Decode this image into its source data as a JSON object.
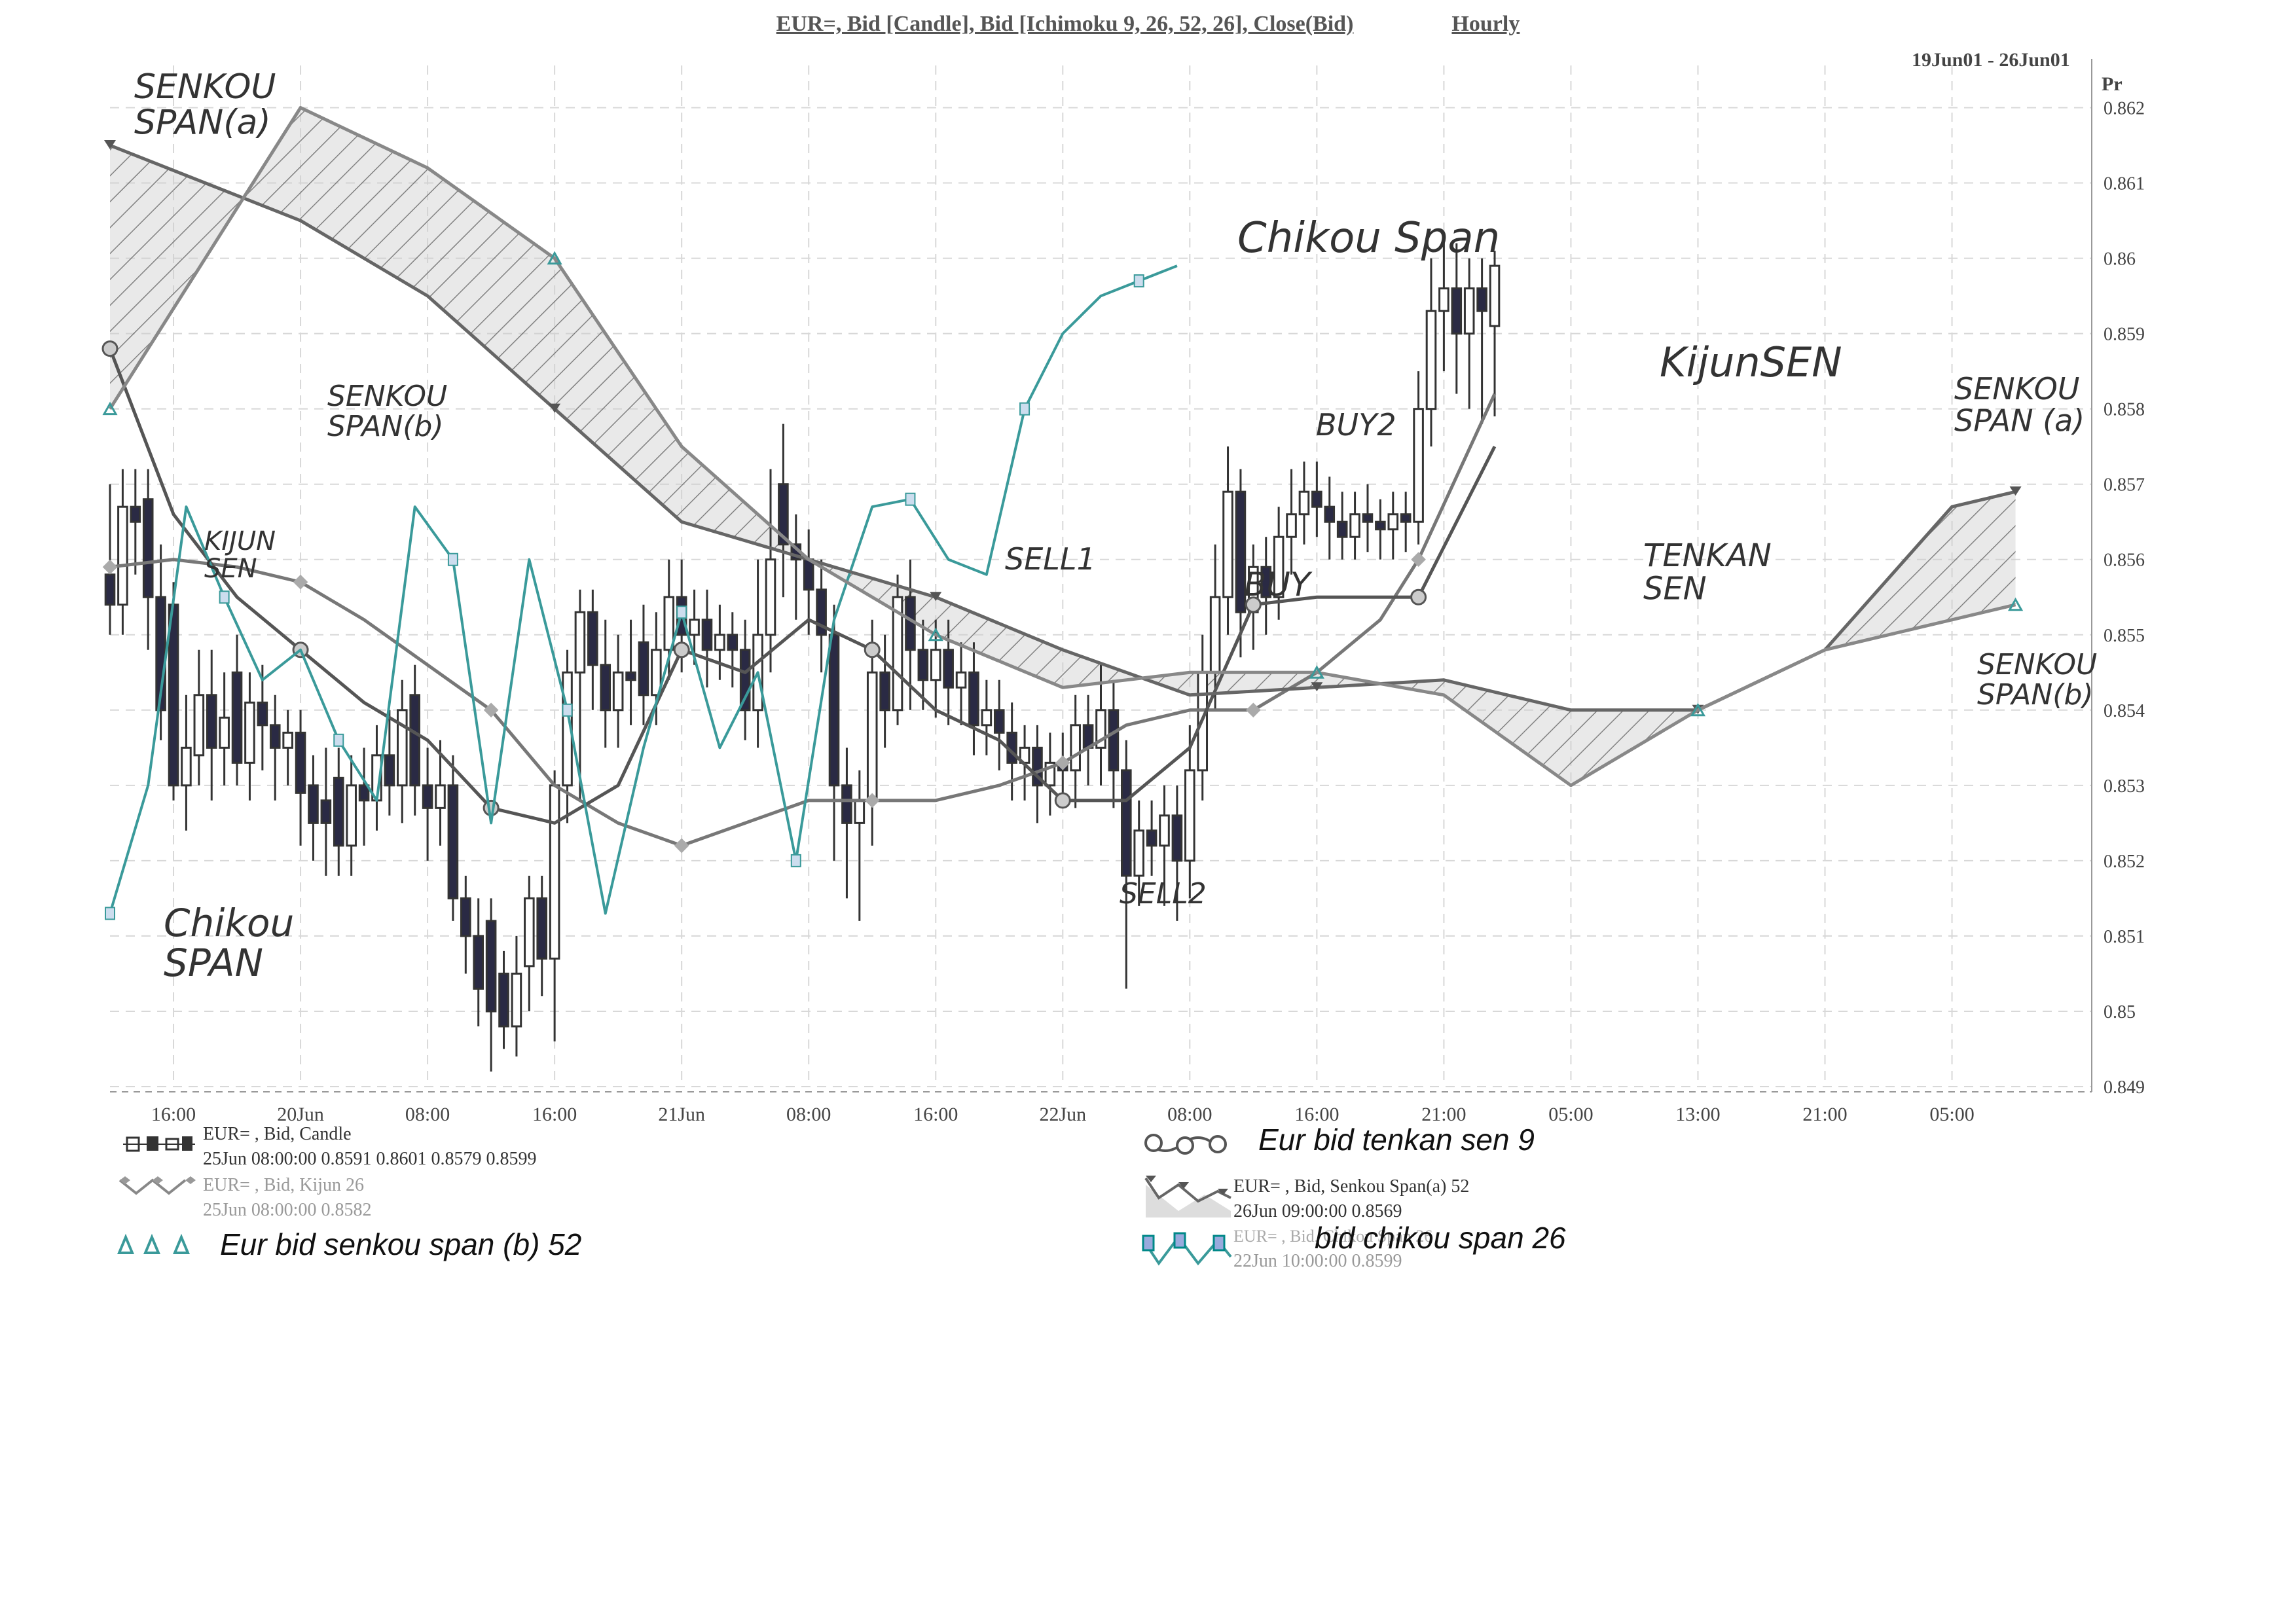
{
  "header": {
    "title": "EUR=, Bid [Candle], Bid [Ichimoku 9, 26, 52, 26], Close(Bid)",
    "timeframe": "Hourly",
    "date_range": "19Jun01 - 26Jun01"
  },
  "legend": {
    "candle_label": "EUR= , Bid, Candle",
    "candle_value": "25Jun 08:00:00 0.8591 0.8601 0.8579 0.8599",
    "kijun_label": "EUR= , Bid, Kijun 26",
    "kijun_value": "25Jun 08:00:00 0.8582",
    "senkou_b_handwritten": "Eur bid senkou span (b) 52",
    "tenkan_handwritten": "Eur bid tenkan sen 9",
    "senkou_a_label": "EUR= , Bid, Senkou Span(a) 52",
    "senkou_a_value": "26Jun 09:00:00 0.8569",
    "chikou_label": "EUR= , Bid, Chikou Span 26",
    "chikou_value": "22Jun 10:00:00 0.8599",
    "chikou_handwritten": "bid chikou span 26"
  },
  "annotations": {
    "senkou_a_left": [
      "SENKOU",
      "SPAN(a)"
    ],
    "senkou_b_left": [
      "SENKOU",
      "SPAN(b)"
    ],
    "kijun_left": [
      "KIJUN",
      "SEN"
    ],
    "chikou_left": [
      "Chikou",
      "SPAN"
    ],
    "chikou_top": "Chikou Span",
    "sell1": "SELL1",
    "sell2": "SELL2",
    "buy1": "BUY",
    "buy2": "BUY2",
    "kijun_right": "KijunSEN",
    "tenkan_right": [
      "TENKAN",
      "SEN"
    ],
    "senkou_a_right": [
      "SENKOU",
      "SPAN (a)"
    ],
    "senkou_b_right": [
      "SENKOU",
      "SPAN(b)"
    ]
  },
  "colors": {
    "candle": "#333333",
    "chikou": "#3a9a9a",
    "kijun": "#777777",
    "tenkan": "#555555",
    "senkou_a": "#666666",
    "senkou_b": "#888888",
    "cloud_fill": "#cfcfcf",
    "grid": "#d8d8d8",
    "accent": "#6a2a6a"
  },
  "chart_data": {
    "type": "candlestick",
    "title": "EUR=, Bid [Candle], Bid [Ichimoku 9, 26, 52, 26], Close(Bid)",
    "ylabel": "Pr",
    "ylim": [
      0.849,
      0.8623
    ],
    "y_ticks": [
      0.862,
      0.861,
      0.86,
      0.859,
      0.858,
      0.857,
      0.856,
      0.855,
      0.854,
      0.853,
      0.852,
      0.851,
      0.85,
      0.849
    ],
    "x_ticks": [
      "16:00",
      "20Jun",
      "08:00",
      "16:00",
      "21Jun",
      "08:00",
      "16:00",
      "22Jun",
      "08:00",
      "16:00",
      "21:00",
      "05:00",
      "13:00",
      "21:00",
      "05:00"
    ],
    "x_tick_positions": [
      0.5,
      1.5,
      2.5,
      3.5,
      4.5,
      5.5,
      6.5,
      7.5,
      8.5,
      9.5,
      10.5,
      11.5,
      12.5,
      13.5,
      14.5
    ],
    "candles": [
      {
        "x": 0.0,
        "o": 0.8558,
        "c": 0.8554,
        "h": 0.857,
        "l": 0.855
      },
      {
        "x": 0.1,
        "o": 0.8554,
        "c": 0.8567,
        "h": 0.8572,
        "l": 0.855
      },
      {
        "x": 0.2,
        "o": 0.8567,
        "c": 0.8565,
        "h": 0.8572,
        "l": 0.8558
      },
      {
        "x": 0.3,
        "o": 0.8568,
        "c": 0.8555,
        "h": 0.8572,
        "l": 0.8548
      },
      {
        "x": 0.4,
        "o": 0.8555,
        "c": 0.854,
        "h": 0.8562,
        "l": 0.8536
      },
      {
        "x": 0.5,
        "o": 0.8554,
        "c": 0.853,
        "h": 0.8557,
        "l": 0.8528
      },
      {
        "x": 0.6,
        "o": 0.853,
        "c": 0.8535,
        "h": 0.8542,
        "l": 0.8524
      },
      {
        "x": 0.7,
        "o": 0.8534,
        "c": 0.8542,
        "h": 0.8548,
        "l": 0.853
      },
      {
        "x": 0.8,
        "o": 0.8542,
        "c": 0.8535,
        "h": 0.8548,
        "l": 0.8528
      },
      {
        "x": 0.9,
        "o": 0.8535,
        "c": 0.8539,
        "h": 0.8545,
        "l": 0.853
      },
      {
        "x": 1.0,
        "o": 0.8545,
        "c": 0.8533,
        "h": 0.855,
        "l": 0.853
      },
      {
        "x": 1.1,
        "o": 0.8533,
        "c": 0.8541,
        "h": 0.8545,
        "l": 0.8528
      },
      {
        "x": 1.2,
        "o": 0.8541,
        "c": 0.8538,
        "h": 0.8546,
        "l": 0.8532
      },
      {
        "x": 1.3,
        "o": 0.8538,
        "c": 0.8535,
        "h": 0.8542,
        "l": 0.8528
      },
      {
        "x": 1.4,
        "o": 0.8535,
        "c": 0.8537,
        "h": 0.854,
        "l": 0.853
      },
      {
        "x": 1.5,
        "o": 0.8537,
        "c": 0.8529,
        "h": 0.854,
        "l": 0.8522
      },
      {
        "x": 1.6,
        "o": 0.853,
        "c": 0.8525,
        "h": 0.8534,
        "l": 0.852
      },
      {
        "x": 1.7,
        "o": 0.8528,
        "c": 0.8525,
        "h": 0.8535,
        "l": 0.8518
      },
      {
        "x": 1.8,
        "o": 0.8531,
        "c": 0.8522,
        "h": 0.8535,
        "l": 0.8518
      },
      {
        "x": 1.9,
        "o": 0.8522,
        "c": 0.853,
        "h": 0.8534,
        "l": 0.8518
      },
      {
        "x": 2.0,
        "o": 0.853,
        "c": 0.8528,
        "h": 0.8535,
        "l": 0.8522
      },
      {
        "x": 2.1,
        "o": 0.8528,
        "c": 0.8534,
        "h": 0.8538,
        "l": 0.8524
      },
      {
        "x": 2.2,
        "o": 0.8534,
        "c": 0.853,
        "h": 0.854,
        "l": 0.8526
      },
      {
        "x": 2.3,
        "o": 0.853,
        "c": 0.854,
        "h": 0.8544,
        "l": 0.8525
      },
      {
        "x": 2.4,
        "o": 0.8542,
        "c": 0.853,
        "h": 0.8546,
        "l": 0.8526
      },
      {
        "x": 2.5,
        "o": 0.853,
        "c": 0.8527,
        "h": 0.8535,
        "l": 0.852
      },
      {
        "x": 2.6,
        "o": 0.8527,
        "c": 0.853,
        "h": 0.8536,
        "l": 0.8522
      },
      {
        "x": 2.7,
        "o": 0.853,
        "c": 0.8515,
        "h": 0.8534,
        "l": 0.8512
      },
      {
        "x": 2.8,
        "o": 0.8515,
        "c": 0.851,
        "h": 0.8518,
        "l": 0.8505
      },
      {
        "x": 2.9,
        "o": 0.851,
        "c": 0.8503,
        "h": 0.8515,
        "l": 0.8498
      },
      {
        "x": 3.0,
        "o": 0.8512,
        "c": 0.85,
        "h": 0.8515,
        "l": 0.8492
      },
      {
        "x": 3.1,
        "o": 0.8505,
        "c": 0.8498,
        "h": 0.8508,
        "l": 0.8495
      },
      {
        "x": 3.2,
        "o": 0.8498,
        "c": 0.8505,
        "h": 0.851,
        "l": 0.8494
      },
      {
        "x": 3.3,
        "o": 0.8506,
        "c": 0.8515,
        "h": 0.8518,
        "l": 0.85
      },
      {
        "x": 3.4,
        "o": 0.8515,
        "c": 0.8507,
        "h": 0.8518,
        "l": 0.8502
      },
      {
        "x": 3.5,
        "o": 0.8507,
        "c": 0.853,
        "h": 0.8532,
        "l": 0.8496
      },
      {
        "x": 3.6,
        "o": 0.853,
        "c": 0.8545,
        "h": 0.8548,
        "l": 0.8525
      },
      {
        "x": 3.7,
        "o": 0.8545,
        "c": 0.8553,
        "h": 0.8556,
        "l": 0.8528
      },
      {
        "x": 3.8,
        "o": 0.8553,
        "c": 0.8546,
        "h": 0.8556,
        "l": 0.854
      },
      {
        "x": 3.9,
        "o": 0.8546,
        "c": 0.854,
        "h": 0.8552,
        "l": 0.8535
      },
      {
        "x": 4.0,
        "o": 0.854,
        "c": 0.8545,
        "h": 0.855,
        "l": 0.8535
      },
      {
        "x": 4.1,
        "o": 0.8545,
        "c": 0.8544,
        "h": 0.8552,
        "l": 0.8538
      },
      {
        "x": 4.2,
        "o": 0.8549,
        "c": 0.8542,
        "h": 0.8554,
        "l": 0.8538
      },
      {
        "x": 4.3,
        "o": 0.8542,
        "c": 0.8548,
        "h": 0.8553,
        "l": 0.8538
      },
      {
        "x": 4.4,
        "o": 0.8548,
        "c": 0.8555,
        "h": 0.856,
        "l": 0.8544
      },
      {
        "x": 4.5,
        "o": 0.8555,
        "c": 0.855,
        "h": 0.856,
        "l": 0.8545
      },
      {
        "x": 4.6,
        "o": 0.855,
        "c": 0.8552,
        "h": 0.8556,
        "l": 0.8546
      },
      {
        "x": 4.7,
        "o": 0.8552,
        "c": 0.8548,
        "h": 0.8556,
        "l": 0.8543
      },
      {
        "x": 4.8,
        "o": 0.8548,
        "c": 0.855,
        "h": 0.8554,
        "l": 0.8544
      },
      {
        "x": 4.9,
        "o": 0.855,
        "c": 0.8548,
        "h": 0.8553,
        "l": 0.8543
      },
      {
        "x": 5.0,
        "o": 0.8548,
        "c": 0.854,
        "h": 0.8552,
        "l": 0.8536
      },
      {
        "x": 5.1,
        "o": 0.854,
        "c": 0.855,
        "h": 0.856,
        "l": 0.8535
      },
      {
        "x": 5.2,
        "o": 0.855,
        "c": 0.856,
        "h": 0.8572,
        "l": 0.8545
      },
      {
        "x": 5.3,
        "o": 0.857,
        "c": 0.8562,
        "h": 0.8578,
        "l": 0.8555
      },
      {
        "x": 5.4,
        "o": 0.8562,
        "c": 0.856,
        "h": 0.8566,
        "l": 0.8552
      },
      {
        "x": 5.5,
        "o": 0.856,
        "c": 0.8556,
        "h": 0.8564,
        "l": 0.855
      },
      {
        "x": 5.6,
        "o": 0.8556,
        "c": 0.855,
        "h": 0.856,
        "l": 0.8545
      },
      {
        "x": 5.7,
        "o": 0.855,
        "c": 0.853,
        "h": 0.8554,
        "l": 0.852
      },
      {
        "x": 5.8,
        "o": 0.853,
        "c": 0.8525,
        "h": 0.8535,
        "l": 0.8515
      },
      {
        "x": 5.9,
        "o": 0.8525,
        "c": 0.8528,
        "h": 0.8532,
        "l": 0.8512
      },
      {
        "x": 6.0,
        "o": 0.8528,
        "c": 0.8545,
        "h": 0.8552,
        "l": 0.8522
      },
      {
        "x": 6.1,
        "o": 0.8545,
        "c": 0.854,
        "h": 0.855,
        "l": 0.8535
      },
      {
        "x": 6.2,
        "o": 0.854,
        "c": 0.8555,
        "h": 0.8558,
        "l": 0.8538
      },
      {
        "x": 6.3,
        "o": 0.8555,
        "c": 0.8548,
        "h": 0.856,
        "l": 0.854
      },
      {
        "x": 6.4,
        "o": 0.8548,
        "c": 0.8544,
        "h": 0.8552,
        "l": 0.854
      },
      {
        "x": 6.5,
        "o": 0.8544,
        "c": 0.8548,
        "h": 0.8552,
        "l": 0.8539
      },
      {
        "x": 6.6,
        "o": 0.8548,
        "c": 0.8543,
        "h": 0.8552,
        "l": 0.8538
      },
      {
        "x": 6.7,
        "o": 0.8543,
        "c": 0.8545,
        "h": 0.8549,
        "l": 0.8538
      },
      {
        "x": 6.8,
        "o": 0.8545,
        "c": 0.8538,
        "h": 0.8549,
        "l": 0.8534
      },
      {
        "x": 6.9,
        "o": 0.8538,
        "c": 0.854,
        "h": 0.8544,
        "l": 0.8534
      },
      {
        "x": 7.0,
        "o": 0.854,
        "c": 0.8537,
        "h": 0.8544,
        "l": 0.8532
      },
      {
        "x": 7.1,
        "o": 0.8537,
        "c": 0.8533,
        "h": 0.8541,
        "l": 0.8528
      },
      {
        "x": 7.2,
        "o": 0.8533,
        "c": 0.8535,
        "h": 0.8538,
        "l": 0.8528
      },
      {
        "x": 7.3,
        "o": 0.8535,
        "c": 0.853,
        "h": 0.8538,
        "l": 0.8525
      },
      {
        "x": 7.4,
        "o": 0.853,
        "c": 0.8533,
        "h": 0.8537,
        "l": 0.8526
      },
      {
        "x": 7.5,
        "o": 0.8533,
        "c": 0.8532,
        "h": 0.8537,
        "l": 0.8527
      },
      {
        "x": 7.6,
        "o": 0.8532,
        "c": 0.8538,
        "h": 0.8542,
        "l": 0.8527
      },
      {
        "x": 7.7,
        "o": 0.8538,
        "c": 0.8535,
        "h": 0.8542,
        "l": 0.853
      },
      {
        "x": 7.8,
        "o": 0.8535,
        "c": 0.854,
        "h": 0.8546,
        "l": 0.853
      },
      {
        "x": 7.9,
        "o": 0.854,
        "c": 0.8532,
        "h": 0.8544,
        "l": 0.8527
      },
      {
        "x": 8.0,
        "o": 0.8532,
        "c": 0.8518,
        "h": 0.8536,
        "l": 0.8503
      },
      {
        "x": 8.1,
        "o": 0.8518,
        "c": 0.8524,
        "h": 0.8528,
        "l": 0.8514
      },
      {
        "x": 8.2,
        "o": 0.8524,
        "c": 0.8522,
        "h": 0.8528,
        "l": 0.8518
      },
      {
        "x": 8.3,
        "o": 0.8522,
        "c": 0.8526,
        "h": 0.853,
        "l": 0.8514
      },
      {
        "x": 8.4,
        "o": 0.8526,
        "c": 0.852,
        "h": 0.853,
        "l": 0.8512
      },
      {
        "x": 8.5,
        "o": 0.852,
        "c": 0.8532,
        "h": 0.8538,
        "l": 0.8515
      },
      {
        "x": 8.6,
        "o": 0.8532,
        "c": 0.8545,
        "h": 0.855,
        "l": 0.8528
      },
      {
        "x": 8.7,
        "o": 0.8545,
        "c": 0.8555,
        "h": 0.8562,
        "l": 0.854
      },
      {
        "x": 8.8,
        "o": 0.8555,
        "c": 0.8569,
        "h": 0.8575,
        "l": 0.855
      },
      {
        "x": 8.9,
        "o": 0.8569,
        "c": 0.8553,
        "h": 0.8572,
        "l": 0.8547
      },
      {
        "x": 9.0,
        "o": 0.8553,
        "c": 0.8559,
        "h": 0.8562,
        "l": 0.8548
      },
      {
        "x": 9.1,
        "o": 0.8559,
        "c": 0.8555,
        "h": 0.8563,
        "l": 0.855
      },
      {
        "x": 9.2,
        "o": 0.8555,
        "c": 0.8563,
        "h": 0.8567,
        "l": 0.8552
      },
      {
        "x": 9.3,
        "o": 0.8563,
        "c": 0.8566,
        "h": 0.8572,
        "l": 0.8558
      },
      {
        "x": 9.4,
        "o": 0.8566,
        "c": 0.8569,
        "h": 0.8573,
        "l": 0.8562
      },
      {
        "x": 9.5,
        "o": 0.8569,
        "c": 0.8567,
        "h": 0.8573,
        "l": 0.8563
      },
      {
        "x": 9.6,
        "o": 0.8567,
        "c": 0.8565,
        "h": 0.8571,
        "l": 0.856
      },
      {
        "x": 9.7,
        "o": 0.8565,
        "c": 0.8563,
        "h": 0.8569,
        "l": 0.856
      },
      {
        "x": 9.8,
        "o": 0.8563,
        "c": 0.8566,
        "h": 0.8569,
        "l": 0.856
      },
      {
        "x": 9.9,
        "o": 0.8566,
        "c": 0.8565,
        "h": 0.857,
        "l": 0.8561
      },
      {
        "x": 10.0,
        "o": 0.8565,
        "c": 0.8564,
        "h": 0.8568,
        "l": 0.856
      },
      {
        "x": 10.1,
        "o": 0.8564,
        "c": 0.8566,
        "h": 0.8569,
        "l": 0.856
      },
      {
        "x": 10.2,
        "o": 0.8566,
        "c": 0.8565,
        "h": 0.8569,
        "l": 0.8561
      },
      {
        "x": 10.3,
        "o": 0.8565,
        "c": 0.858,
        "h": 0.8585,
        "l": 0.8562
      },
      {
        "x": 10.4,
        "o": 0.858,
        "c": 0.8593,
        "h": 0.86,
        "l": 0.8575
      },
      {
        "x": 10.5,
        "o": 0.8593,
        "c": 0.8596,
        "h": 0.8603,
        "l": 0.8585
      },
      {
        "x": 10.6,
        "o": 0.8596,
        "c": 0.859,
        "h": 0.8602,
        "l": 0.8582
      },
      {
        "x": 10.7,
        "o": 0.859,
        "c": 0.8596,
        "h": 0.86,
        "l": 0.858
      },
      {
        "x": 10.8,
        "o": 0.8596,
        "c": 0.8593,
        "h": 0.86,
        "l": 0.8578
      },
      {
        "x": 10.9,
        "o": 0.8591,
        "c": 0.8599,
        "h": 0.8601,
        "l": 0.8579
      }
    ],
    "series": [
      {
        "name": "Kijun 26",
        "x": [
          0.0,
          0.5,
          1.0,
          1.5,
          2.0,
          2.5,
          3.0,
          3.5,
          4.0,
          4.5,
          5.0,
          5.5,
          6.0,
          6.5,
          7.0,
          7.5,
          8.0,
          8.5,
          9.0,
          9.5,
          10.0,
          10.3,
          10.9
        ],
        "values": [
          0.8559,
          0.856,
          0.8559,
          0.8557,
          0.8552,
          0.8546,
          0.854,
          0.853,
          0.8525,
          0.8522,
          0.8525,
          0.8528,
          0.8528,
          0.8528,
          0.853,
          0.8533,
          0.8538,
          0.854,
          0.854,
          0.8545,
          0.8552,
          0.856,
          0.8582
        ]
      },
      {
        "name": "Tenkan 9",
        "x": [
          0.0,
          0.5,
          1.0,
          1.5,
          2.0,
          2.5,
          3.0,
          3.5,
          4.0,
          4.5,
          5.0,
          5.5,
          6.0,
          6.5,
          7.0,
          7.5,
          8.0,
          8.5,
          9.0,
          9.5,
          10.0,
          10.3,
          10.9
        ],
        "values": [
          0.8588,
          0.8566,
          0.8555,
          0.8548,
          0.8541,
          0.8536,
          0.8527,
          0.8525,
          0.853,
          0.8548,
          0.8545,
          0.8552,
          0.8548,
          0.854,
          0.8536,
          0.8528,
          0.8528,
          0.8535,
          0.8554,
          0.8555,
          0.8555,
          0.8555,
          0.8575
        ]
      },
      {
        "name": "Chikou 26",
        "x": [
          0.0,
          0.3,
          0.6,
          0.9,
          1.2,
          1.5,
          1.8,
          2.1,
          2.4,
          2.7,
          3.0,
          3.3,
          3.6,
          3.9,
          4.2,
          4.5,
          4.8,
          5.1,
          5.4,
          5.7,
          6.0,
          6.3,
          6.6,
          6.9,
          7.2,
          7.5,
          7.8,
          8.1,
          8.4
        ],
        "values": [
          0.8513,
          0.853,
          0.8567,
          0.8555,
          0.8544,
          0.8548,
          0.8536,
          0.8528,
          0.8567,
          0.856,
          0.8525,
          0.856,
          0.854,
          0.8513,
          0.8535,
          0.8553,
          0.8535,
          0.8545,
          0.852,
          0.8552,
          0.8567,
          0.8568,
          0.856,
          0.8558,
          0.858,
          0.859,
          0.8595,
          0.8597,
          0.8599
        ]
      },
      {
        "name": "Senkou Span(a) 52",
        "x": [
          0.0,
          1.5,
          2.5,
          3.5,
          4.5,
          5.5,
          6.5,
          7.5,
          8.5,
          9.5,
          10.5,
          11.5,
          12.5,
          13.5,
          14.5,
          15.0
        ],
        "values": [
          0.8615,
          0.8605,
          0.8595,
          0.858,
          0.8565,
          0.856,
          0.8555,
          0.8548,
          0.8542,
          0.8543,
          0.8544,
          0.854,
          0.854,
          0.8548,
          0.8567,
          0.8569
        ]
      },
      {
        "name": "Senkou Span(b) 52",
        "x": [
          0.0,
          1.5,
          2.5,
          3.5,
          4.5,
          5.5,
          6.5,
          7.5,
          8.5,
          9.5,
          10.5,
          11.5,
          12.5,
          13.5,
          14.5,
          15.0
        ],
        "values": [
          0.858,
          0.862,
          0.8612,
          0.86,
          0.8575,
          0.856,
          0.855,
          0.8543,
          0.8545,
          0.8545,
          0.8542,
          0.853,
          0.854,
          0.8548,
          0.8552,
          0.8554
        ]
      }
    ]
  }
}
